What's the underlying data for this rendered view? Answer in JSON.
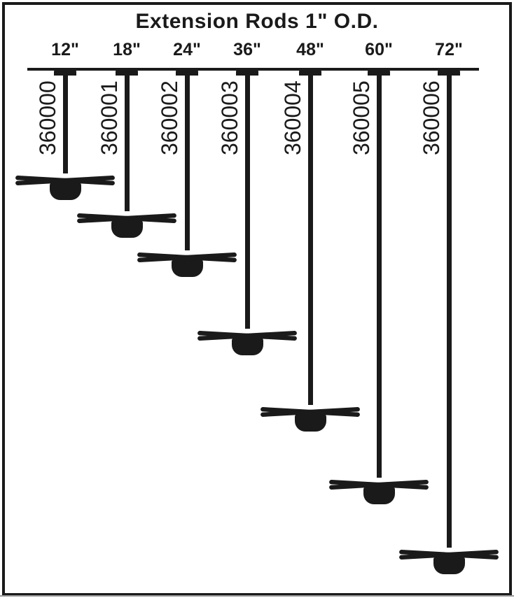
{
  "title": "Extension Rods 1\" O.D.",
  "colors": {
    "ink": "#1a1a1a",
    "background": "#ffffff"
  },
  "rods": [
    {
      "length_label": "12\"",
      "length_inches": 12,
      "part_number": "360000"
    },
    {
      "length_label": "18\"",
      "length_inches": 18,
      "part_number": "360001"
    },
    {
      "length_label": "24\"",
      "length_inches": 24,
      "part_number": "360002"
    },
    {
      "length_label": "36\"",
      "length_inches": 36,
      "part_number": "360003"
    },
    {
      "length_label": "48\"",
      "length_inches": 48,
      "part_number": "360004"
    },
    {
      "length_label": "60\"",
      "length_inches": 60,
      "part_number": "360005"
    },
    {
      "length_label": "72\"",
      "length_inches": 72,
      "part_number": "360006"
    }
  ]
}
